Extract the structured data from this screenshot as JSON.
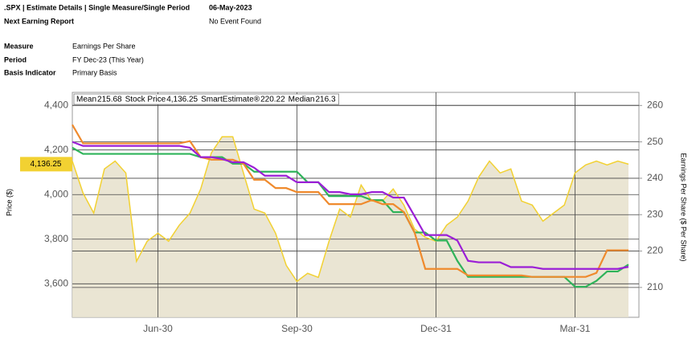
{
  "header": {
    "title": ".SPX | Estimate Details | Single Measure/Single Period",
    "date": "06-May-2023",
    "next_earning_label": "Next Earning Report",
    "next_earning_value": "No Event Found"
  },
  "fields": [
    {
      "label": "Measure",
      "value": "Earnings Per Share"
    },
    {
      "label": "Period",
      "value": "FY Dec-23 (This Year)"
    },
    {
      "label": "Basis Indicator",
      "value": "Primary Basis"
    }
  ],
  "chart_data": {
    "type": "line",
    "ylabel": "Price ($)",
    "y2label": "Earnings Per Share ($ Per Share)",
    "categories": [
      null,
      null,
      null,
      null,
      null,
      null,
      null,
      null,
      "Jun-30",
      null,
      null,
      null,
      null,
      null,
      null,
      null,
      null,
      null,
      null,
      null,
      null,
      "Sep-30",
      null,
      null,
      null,
      null,
      null,
      null,
      null,
      null,
      null,
      null,
      null,
      null,
      "Dec-31",
      null,
      null,
      null,
      null,
      null,
      null,
      null,
      null,
      null,
      null,
      null,
      null,
      "Mar-31",
      null,
      null,
      null,
      null,
      null
    ],
    "ylim": [
      3450,
      4458
    ],
    "yticks": [
      {
        "value": 3600,
        "label": "3,600"
      },
      {
        "value": 3800,
        "label": "3,800"
      },
      {
        "value": 4000,
        "label": "4,000"
      },
      {
        "value": 4200,
        "label": "4,200"
      },
      {
        "value": 4400,
        "label": "4,400"
      }
    ],
    "y2lim": [
      201.8,
      263.6
    ],
    "y2ticks": [
      210,
      220,
      230,
      240,
      250,
      260
    ],
    "grid": true,
    "series": [
      {
        "name": "Mean",
        "color": "#9b1fd6",
        "axis": "y2",
        "current": 215.68,
        "values": [
          250,
          248.9,
          248.9,
          248.9,
          248.9,
          248.9,
          248.9,
          248.9,
          248.9,
          248.9,
          248.9,
          248.4,
          245.8,
          245.8,
          245.3,
          244.4,
          244.4,
          242.9,
          240.7,
          240.7,
          240.7,
          238.9,
          238.9,
          238.9,
          236.2,
          236.2,
          235.6,
          235.6,
          236.2,
          236.2,
          234.7,
          234.7,
          229.6,
          224.4,
          224.4,
          224.4,
          222.9,
          217.3,
          216.9,
          216.9,
          216.9,
          215.6,
          215.6,
          215.6,
          215.1,
          215.1,
          215.1,
          215.1,
          215.1,
          215.1,
          215.1,
          215.1,
          215.68
        ]
      },
      {
        "name": "Stock Price",
        "color": "#f2d132",
        "axis": "y",
        "current": {
          "value": 4136.25,
          "label": "4,136.25"
        },
        "values": [
          4150,
          4007,
          3917,
          4115,
          4150,
          4097,
          3701,
          3791,
          3827,
          3791,
          3863,
          3917,
          4025,
          4187,
          4259,
          4259,
          4097,
          3935,
          3917,
          3827,
          3683,
          3611,
          3647,
          3629,
          3791,
          3935,
          3899,
          4043,
          3971,
          3971,
          4025,
          3953,
          3845,
          3809,
          3791,
          3863,
          3899,
          3971,
          4079,
          4150,
          4097,
          4115,
          3971,
          3953,
          3881,
          3917,
          3953,
          4097,
          4133,
          4150,
          4133,
          4150,
          4136.25
        ]
      },
      {
        "name": "SmartEstimate®",
        "color": "#ef8a2d",
        "axis": "y2",
        "current": 220.22,
        "values": [
          254.7,
          249.6,
          249.6,
          249.6,
          249.6,
          249.6,
          249.6,
          249.6,
          249.6,
          249.6,
          249.6,
          250.2,
          245.8,
          245.1,
          245.1,
          245.1,
          244,
          239.6,
          239.6,
          237.3,
          237.3,
          236.2,
          236.2,
          236.2,
          232.9,
          232.9,
          232.9,
          232.9,
          234,
          232.9,
          232.9,
          230.7,
          225.1,
          215.1,
          215.1,
          215.1,
          215.1,
          213.3,
          213.3,
          213.3,
          213.3,
          213.3,
          213.3,
          212.9,
          212.9,
          212.9,
          212.9,
          212.9,
          212.9,
          214,
          220.22,
          220.22,
          220.22
        ]
      },
      {
        "name": "Median",
        "color": "#2fb35a",
        "axis": "y2",
        "current": 216.3,
        "values": [
          248.4,
          246.7,
          246.7,
          246.7,
          246.7,
          246.7,
          246.7,
          246.7,
          246.7,
          246.7,
          246.7,
          246.7,
          245.8,
          245.8,
          245.8,
          244,
          244,
          241.8,
          241.8,
          241.8,
          241.8,
          241.8,
          238.9,
          238.9,
          235.1,
          235.1,
          235.1,
          235.1,
          234,
          234,
          230.7,
          230.7,
          225.1,
          225.1,
          222.9,
          222.9,
          217.3,
          212.9,
          212.9,
          212.9,
          212.9,
          212.9,
          212.9,
          212.9,
          212.9,
          212.9,
          212.9,
          210.2,
          210.2,
          211.8,
          214.4,
          214.4,
          216.3
        ]
      }
    ]
  }
}
